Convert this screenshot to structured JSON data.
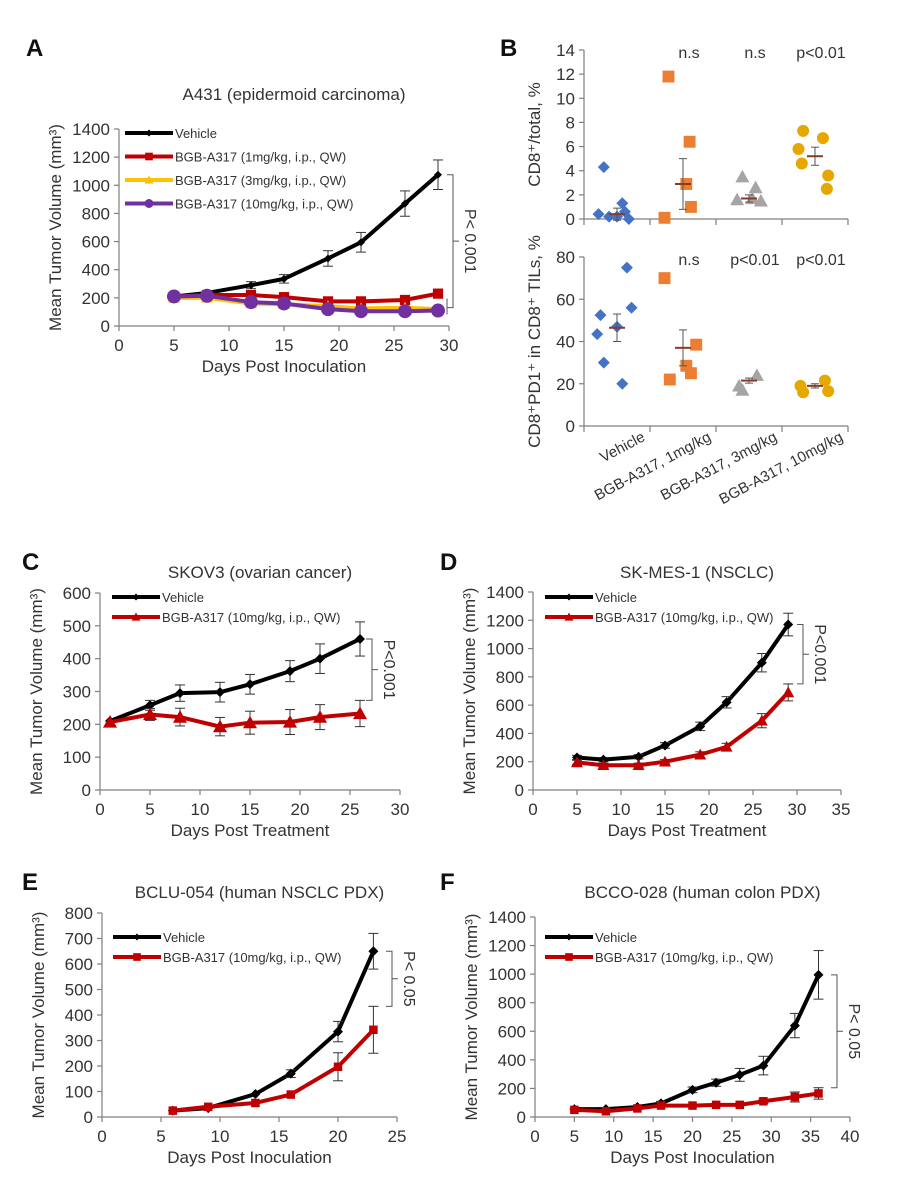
{
  "figure": {
    "panels": [
      "A",
      "B",
      "C",
      "D",
      "E",
      "F"
    ]
  },
  "chart_data": [
    {
      "id": "A",
      "panel_label": "A",
      "type": "line",
      "title": "A431 (epidermoid carcinoma)",
      "xlabel": "Days Post Inoculation",
      "ylabel": "Mean Tumor Volume (mm³)",
      "xlim": [
        0,
        30
      ],
      "xticks": [
        0,
        5,
        10,
        15,
        20,
        25,
        30
      ],
      "ylim": [
        0,
        1400
      ],
      "yticks": [
        0,
        200,
        400,
        600,
        800,
        1000,
        1200,
        1400
      ],
      "legend_position": "top-left",
      "significance": "P< 0.001",
      "series": [
        {
          "name": "Vehicle",
          "color": "#000000",
          "marker": "diamond",
          "x": [
            5,
            8,
            12,
            15,
            19,
            22,
            26,
            29
          ],
          "y": [
            210,
            235,
            290,
            335,
            480,
            595,
            870,
            1075
          ],
          "err": [
            15,
            15,
            25,
            30,
            55,
            70,
            90,
            105
          ]
        },
        {
          "name": "BGB-A317 (1mg/kg, i.p., QW)",
          "color": "#c00000",
          "marker": "square",
          "x": [
            5,
            8,
            12,
            15,
            19,
            22,
            26,
            29
          ],
          "y": [
            210,
            220,
            220,
            205,
            175,
            175,
            185,
            230
          ],
          "err": [
            10,
            10,
            10,
            10,
            10,
            10,
            10,
            10
          ]
        },
        {
          "name": "BGB-A317 (3mg/kg, i.p., QW)",
          "color": "#ffc000",
          "marker": "triangle",
          "x": [
            5,
            8,
            12,
            15,
            19,
            22,
            26,
            29
          ],
          "y": [
            200,
            200,
            160,
            155,
            140,
            125,
            130,
            120
          ],
          "err": [
            10,
            10,
            10,
            10,
            10,
            10,
            10,
            10
          ]
        },
        {
          "name": "BGB-A317 (10mg/kg, i.p., QW)",
          "color": "#7030a0",
          "marker": "circle",
          "x": [
            5,
            8,
            12,
            15,
            19,
            22,
            26,
            29
          ],
          "y": [
            210,
            215,
            170,
            160,
            120,
            105,
            105,
            110
          ],
          "err": [
            10,
            10,
            10,
            10,
            10,
            10,
            10,
            10
          ]
        }
      ]
    },
    {
      "id": "B",
      "panel_label": "B",
      "type": "scatter",
      "categories": [
        "Vehicle",
        "BGB-A317, 1mg/kg",
        "BGB-A317, 3mg/kg",
        "BGB-A317, 10mg/kg"
      ],
      "subplots": [
        {
          "ylabel": "CD8⁺/total, %",
          "ylim": [
            0,
            14
          ],
          "yticks": [
            0,
            2,
            4,
            6,
            8,
            10,
            12,
            14
          ],
          "significance": [
            "",
            "n.s",
            "n.s",
            "p<0.01"
          ],
          "groups": [
            {
              "category": "Vehicle",
              "color": "#4472c4",
              "marker": "diamond",
              "points": [
                [
                  -0.28,
                  0.4
                ],
                [
                  -0.2,
                  4.3
                ],
                [
                  -0.12,
                  0.2
                ],
                [
                  0.0,
                  0.2
                ],
                [
                  0.08,
                  1.3
                ],
                [
                  0.12,
                  0.6
                ],
                [
                  0.18,
                  0.0
                ]
              ],
              "mean": 0.4,
              "sem": 0.5
            },
            {
              "category": "BGB-A317, 1mg/kg",
              "color": "#ed7d31",
              "marker": "square",
              "points": [
                [
                  -0.28,
                  0.1
                ],
                [
                  -0.22,
                  11.8
                ],
                [
                  0.05,
                  2.9
                ],
                [
                  0.1,
                  6.4
                ],
                [
                  0.12,
                  1.0
                ]
              ],
              "mean": 2.9,
              "sem": 2.1
            },
            {
              "category": "BGB-A317, 3mg/kg",
              "color": "#a5a5a5",
              "marker": "triangle",
              "points": [
                [
                  -0.18,
                  1.6
                ],
                [
                  -0.1,
                  3.5
                ],
                [
                  0.05,
                  1.7
                ],
                [
                  0.1,
                  2.6
                ],
                [
                  0.18,
                  1.5
                ]
              ],
              "mean": 1.7,
              "sem": 0.3
            },
            {
              "category": "BGB-A317, 10mg/kg",
              "color": "#e6a800",
              "marker": "circle",
              "points": [
                [
                  -0.25,
                  5.8
                ],
                [
                  -0.18,
                  7.3
                ],
                [
                  -0.2,
                  4.6
                ],
                [
                  0.12,
                  6.7
                ],
                [
                  0.2,
                  3.6
                ],
                [
                  0.18,
                  2.5
                ]
              ],
              "mean": 5.2,
              "sem": 0.75
            }
          ]
        },
        {
          "ylabel": "CD8⁺PD1⁺ in CD8⁺ TILs, %",
          "ylim": [
            0,
            80
          ],
          "yticks": [
            0,
            20,
            40,
            60,
            80
          ],
          "significance": [
            "",
            "n.s",
            "p<0.01",
            "p<0.01"
          ],
          "groups": [
            {
              "category": "Vehicle",
              "color": "#4472c4",
              "marker": "diamond",
              "points": [
                [
                  -0.3,
                  43.5
                ],
                [
                  -0.25,
                  52.5
                ],
                [
                  -0.2,
                  30
                ],
                [
                  0.0,
                  47
                ],
                [
                  0.08,
                  20
                ],
                [
                  0.15,
                  75
                ],
                [
                  0.22,
                  56
                ]
              ],
              "mean": 46.5,
              "sem": 6.5
            },
            {
              "category": "BGB-A317, 1mg/kg",
              "color": "#ed7d31",
              "marker": "square",
              "points": [
                [
                  -0.28,
                  70
                ],
                [
                  -0.2,
                  22
                ],
                [
                  0.05,
                  28.5
                ],
                [
                  0.12,
                  25
                ],
                [
                  0.2,
                  38.5
                ]
              ],
              "mean": 37,
              "sem": 8.5
            },
            {
              "category": "BGB-A317, 3mg/kg",
              "color": "#a5a5a5",
              "marker": "triangle",
              "points": [
                [
                  -0.15,
                  19
                ],
                [
                  -0.1,
                  17
                ],
                [
                  0.12,
                  24
                ]
              ],
              "mean": 21.5,
              "sem": 1.2
            },
            {
              "category": "BGB-A317, 10mg/kg",
              "color": "#e6a800",
              "marker": "circle",
              "points": [
                [
                  -0.22,
                  19
                ],
                [
                  -0.18,
                  16
                ],
                [
                  0.15,
                  21.5
                ],
                [
                  0.2,
                  16.5
                ]
              ],
              "mean": 19,
              "sem": 1.0
            }
          ]
        }
      ]
    },
    {
      "id": "C",
      "panel_label": "C",
      "type": "line",
      "title": "SKOV3 (ovarian cancer)",
      "xlabel": "Days Post Treatment",
      "ylabel": "Mean Tumor Volume (mm³)",
      "xlim": [
        0,
        30
      ],
      "xticks": [
        0,
        5,
        10,
        15,
        20,
        25,
        30
      ],
      "ylim": [
        0,
        600
      ],
      "yticks": [
        0,
        100,
        200,
        300,
        400,
        500,
        600
      ],
      "legend_position": "top-left",
      "significance": "P<0.001",
      "series": [
        {
          "name": "Vehicle",
          "color": "#000000",
          "marker": "diamond",
          "x": [
            1,
            5,
            8,
            12,
            15,
            19,
            22,
            26
          ],
          "y": [
            210,
            258,
            295,
            298,
            322,
            362,
            400,
            460
          ],
          "err": [
            8,
            15,
            25,
            30,
            30,
            32,
            45,
            52
          ]
        },
        {
          "name": "BGB-A317 (10mg/kg, i.p., QW)",
          "color": "#c00000",
          "marker": "triangle",
          "x": [
            1,
            5,
            8,
            12,
            15,
            19,
            22,
            26
          ],
          "y": [
            207,
            230,
            222,
            193,
            205,
            207,
            222,
            233
          ],
          "err": [
            8,
            18,
            27,
            28,
            35,
            38,
            38,
            40
          ]
        }
      ]
    },
    {
      "id": "D",
      "panel_label": "D",
      "type": "line",
      "title": "SK-MES-1 (NSCLC)",
      "xlabel": "Days Post Treatment",
      "ylabel": "Mean Tumor Volume (mm³)",
      "xlim": [
        0,
        35
      ],
      "xticks": [
        0,
        5,
        10,
        15,
        20,
        25,
        30,
        35
      ],
      "ylim": [
        0,
        1400
      ],
      "yticks": [
        0,
        200,
        400,
        600,
        800,
        1000,
        1200,
        1400
      ],
      "legend_position": "top-left",
      "significance": "P<0.001",
      "series": [
        {
          "name": "Vehicle",
          "color": "#000000",
          "marker": "diamond",
          "x": [
            5,
            8,
            12,
            15,
            19,
            22,
            26,
            29
          ],
          "y": [
            230,
            215,
            235,
            315,
            450,
            620,
            900,
            1170
          ],
          "err": [
            15,
            15,
            15,
            20,
            30,
            40,
            65,
            80
          ]
        },
        {
          "name": "BGB-A317 (10mg/kg, i.p., QW)",
          "color": "#c00000",
          "marker": "triangle",
          "x": [
            5,
            8,
            12,
            15,
            19,
            22,
            26,
            29
          ],
          "y": [
            195,
            175,
            175,
            200,
            250,
            305,
            490,
            690
          ],
          "err": [
            15,
            15,
            15,
            15,
            20,
            25,
            50,
            60
          ]
        }
      ]
    },
    {
      "id": "E",
      "panel_label": "E",
      "type": "line",
      "title": "BCLU-054 (human NSCLC PDX)",
      "xlabel": "Days Post Inoculation",
      "ylabel": "Mean Tumor Volume (mm³)",
      "xlim": [
        0,
        25
      ],
      "xticks": [
        0,
        5,
        10,
        15,
        20,
        25
      ],
      "ylim": [
        0,
        800
      ],
      "yticks": [
        0,
        100,
        200,
        300,
        400,
        500,
        600,
        700,
        800
      ],
      "legend_position": "top-left",
      "significance": "P< 0.05",
      "series": [
        {
          "name": "Vehicle",
          "color": "#000000",
          "marker": "diamond",
          "x": [
            6,
            9,
            13,
            16,
            20,
            23
          ],
          "y": [
            25,
            35,
            90,
            170,
            335,
            650
          ],
          "err": [
            5,
            5,
            10,
            15,
            40,
            70
          ]
        },
        {
          "name": "BGB-A317 (10mg/kg, i.p., QW)",
          "color": "#c00000",
          "marker": "square",
          "x": [
            6,
            9,
            13,
            16,
            20,
            23
          ],
          "y": [
            25,
            40,
            55,
            88,
            197,
            342
          ],
          "err": [
            5,
            5,
            8,
            10,
            55,
            92
          ]
        }
      ]
    },
    {
      "id": "F",
      "panel_label": "F",
      "type": "line",
      "title": "BCCO-028 (human colon PDX)",
      "xlabel": "Days Post Inoculation",
      "ylabel": "Mean Tumor Volume (mm³)",
      "xlim": [
        0,
        40
      ],
      "xticks": [
        0,
        5,
        10,
        15,
        20,
        25,
        30,
        35,
        40
      ],
      "ylim": [
        0,
        1400
      ],
      "yticks": [
        0,
        200,
        400,
        600,
        800,
        1000,
        1200,
        1400
      ],
      "legend_position": "top-left",
      "significance": "P< 0.05",
      "series": [
        {
          "name": "Vehicle",
          "color": "#000000",
          "marker": "diamond",
          "x": [
            5,
            9,
            13,
            16,
            20,
            23,
            26,
            29,
            33,
            36
          ],
          "y": [
            55,
            55,
            70,
            95,
            190,
            240,
            295,
            360,
            640,
            995
          ],
          "err": [
            8,
            8,
            10,
            15,
            20,
            25,
            45,
            65,
            85,
            170
          ]
        },
        {
          "name": "BGB-A317 (10mg/kg, i.p., QW)",
          "color": "#c00000",
          "marker": "square",
          "x": [
            5,
            9,
            13,
            16,
            20,
            23,
            26,
            29,
            33,
            36
          ],
          "y": [
            50,
            40,
            60,
            80,
            80,
            85,
            85,
            110,
            140,
            165
          ],
          "err": [
            8,
            8,
            8,
            10,
            10,
            10,
            10,
            15,
            35,
            40
          ]
        }
      ]
    }
  ]
}
